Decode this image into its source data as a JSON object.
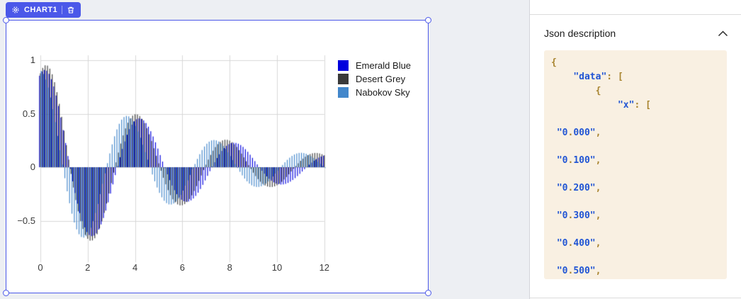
{
  "canvas": {
    "selected_widget": {
      "badge_label": "CHART1",
      "accent_color": "#4b58e9",
      "icons": [
        "gear",
        "trash"
      ]
    }
  },
  "chart_data": {
    "type": "bar",
    "title": "",
    "xlabel": "",
    "ylabel": "",
    "xticks": [
      0,
      2,
      4,
      6,
      8,
      10,
      12
    ],
    "yticks": [
      -0.5,
      0,
      0.5,
      1
    ],
    "xlim": [
      -0.3,
      12.3
    ],
    "ylim": [
      -0.88,
      1.06
    ],
    "grid": true,
    "grid_color": "#d8d8d8",
    "legend_position": "upper-right",
    "x_start": 0,
    "x_end": 12,
    "x_step": 0.1,
    "n_points_per_series": 121,
    "value_formula": "y = amplitude * exp(-x / decay_tau) * cos(2*PI*x / period + phase_rad)",
    "series": [
      {
        "name": "Emerald Blue",
        "color": "#0000dd",
        "amplitude": 0.95,
        "decay_tau": 5.8,
        "period": 4.0,
        "phase_rad": -0.45
      },
      {
        "name": "Desert Grey",
        "color": "#3a3a3a",
        "amplitude": 1.0,
        "decay_tau": 5.8,
        "period": 3.8,
        "phase_rad": -0.5
      },
      {
        "name": "Nabokov Sky",
        "color": "#4387cb",
        "amplitude": 0.9,
        "decay_tau": 5.8,
        "period": 3.68,
        "phase_rad": 0
      }
    ]
  },
  "json_panel": {
    "title": "Json description",
    "collapse_icon": "chevron-up",
    "code_colors": {
      "str": "#2155d4",
      "punct": "#a8842f",
      "bg": "#f9f0e2"
    },
    "code_lines": [
      {
        "indent": 0,
        "gap": false,
        "segments": [
          {
            "t": "{",
            "c": "punct"
          }
        ]
      },
      {
        "indent": 4,
        "gap": false,
        "segments": [
          {
            "t": "\"data\"",
            "c": "str"
          },
          {
            "t": ": ",
            "c": "punct"
          },
          {
            "t": "[",
            "c": "punct"
          }
        ]
      },
      {
        "indent": 8,
        "gap": false,
        "segments": [
          {
            "t": "{",
            "c": "punct"
          }
        ]
      },
      {
        "indent": 12,
        "gap": false,
        "segments": [
          {
            "t": "\"x\"",
            "c": "str"
          },
          {
            "t": ": ",
            "c": "punct"
          },
          {
            "t": "[",
            "c": "punct"
          }
        ]
      },
      {
        "indent": 1,
        "gap": true,
        "segments": [
          {
            "t": "\"0",
            "c": "str"
          },
          {
            "t": ".",
            "c": "punct"
          },
          {
            "t": "000\"",
            "c": "str"
          },
          {
            "t": ",",
            "c": "punct"
          }
        ]
      },
      {
        "indent": 1,
        "gap": true,
        "segments": [
          {
            "t": "\"0",
            "c": "str"
          },
          {
            "t": ".",
            "c": "punct"
          },
          {
            "t": "100\"",
            "c": "str"
          },
          {
            "t": ",",
            "c": "punct"
          }
        ]
      },
      {
        "indent": 1,
        "gap": true,
        "segments": [
          {
            "t": "\"0",
            "c": "str"
          },
          {
            "t": ".",
            "c": "punct"
          },
          {
            "t": "200\"",
            "c": "str"
          },
          {
            "t": ",",
            "c": "punct"
          }
        ]
      },
      {
        "indent": 1,
        "gap": true,
        "segments": [
          {
            "t": "\"0",
            "c": "str"
          },
          {
            "t": ".",
            "c": "punct"
          },
          {
            "t": "300\"",
            "c": "str"
          },
          {
            "t": ",",
            "c": "punct"
          }
        ]
      },
      {
        "indent": 1,
        "gap": true,
        "segments": [
          {
            "t": "\"0",
            "c": "str"
          },
          {
            "t": ".",
            "c": "punct"
          },
          {
            "t": "400\"",
            "c": "str"
          },
          {
            "t": ",",
            "c": "punct"
          }
        ]
      },
      {
        "indent": 1,
        "gap": true,
        "segments": [
          {
            "t": "\"0",
            "c": "str"
          },
          {
            "t": ".",
            "c": "punct"
          },
          {
            "t": "500\"",
            "c": "str"
          },
          {
            "t": ",",
            "c": "punct"
          }
        ]
      }
    ]
  }
}
